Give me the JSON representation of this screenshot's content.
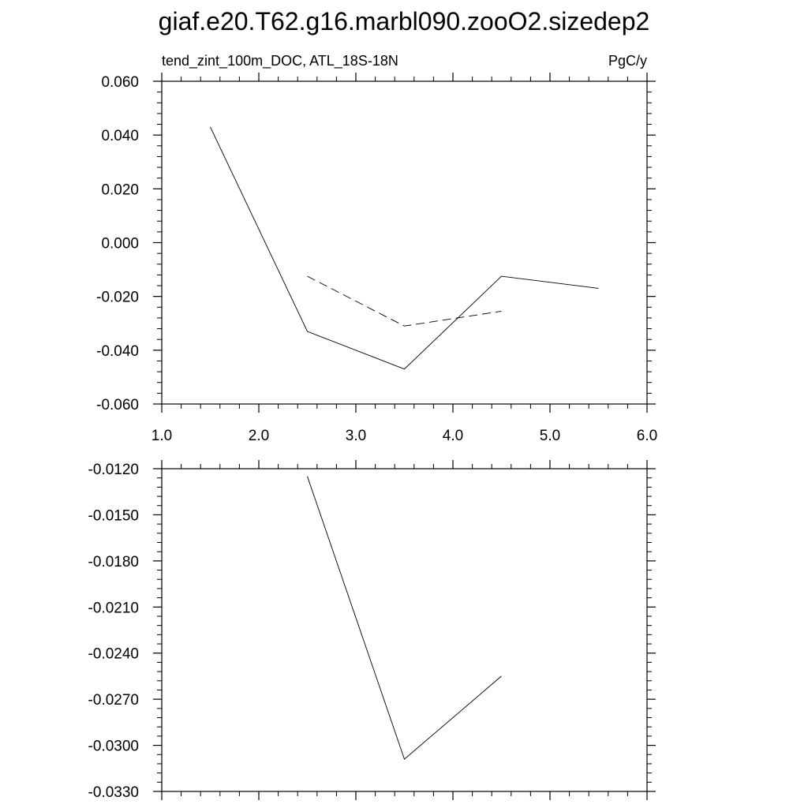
{
  "title": "giaf.e20.T62.g16.marbl090.zooO2.sizedep2",
  "chart_data": [
    {
      "type": "line",
      "left_label": "tend_zint_100m_DOC, ATL_18S-18N",
      "right_label": "PgC/y",
      "xlim": [
        1.0,
        6.0
      ],
      "ylim": [
        -0.06,
        0.06
      ],
      "x_ticks": [
        "1.0",
        "2.0",
        "3.0",
        "4.0",
        "5.0",
        "6.0"
      ],
      "y_ticks": [
        "0.060",
        "0.040",
        "0.020",
        "0.000",
        "-0.020",
        "-0.040",
        "-0.060"
      ],
      "x_tick_labels_shown": true,
      "series": [
        {
          "style": "solid",
          "x": [
            1.5,
            2.5,
            3.5,
            4.5,
            5.5
          ],
          "y": [
            0.043,
            -0.033,
            -0.047,
            -0.0125,
            -0.017
          ]
        },
        {
          "style": "dashed",
          "x": [
            2.5,
            3.5,
            4.5
          ],
          "y": [
            -0.0125,
            -0.031,
            -0.0255
          ]
        }
      ]
    },
    {
      "type": "line",
      "left_label": "",
      "right_label": "",
      "xlim": [
        1.0,
        6.0
      ],
      "ylim": [
        -0.033,
        -0.012
      ],
      "x_ticks": [
        "1.0",
        "2.0",
        "3.0",
        "4.0",
        "5.0",
        "6.0"
      ],
      "y_ticks": [
        "-0.0120",
        "-0.0150",
        "-0.0180",
        "-0.0210",
        "-0.0240",
        "-0.0270",
        "-0.0300",
        "-0.0330"
      ],
      "x_tick_labels_shown": false,
      "series": [
        {
          "style": "solid",
          "x": [
            2.5,
            3.5,
            4.5
          ],
          "y": [
            -0.0125,
            -0.0309,
            -0.0255
          ]
        }
      ]
    }
  ]
}
